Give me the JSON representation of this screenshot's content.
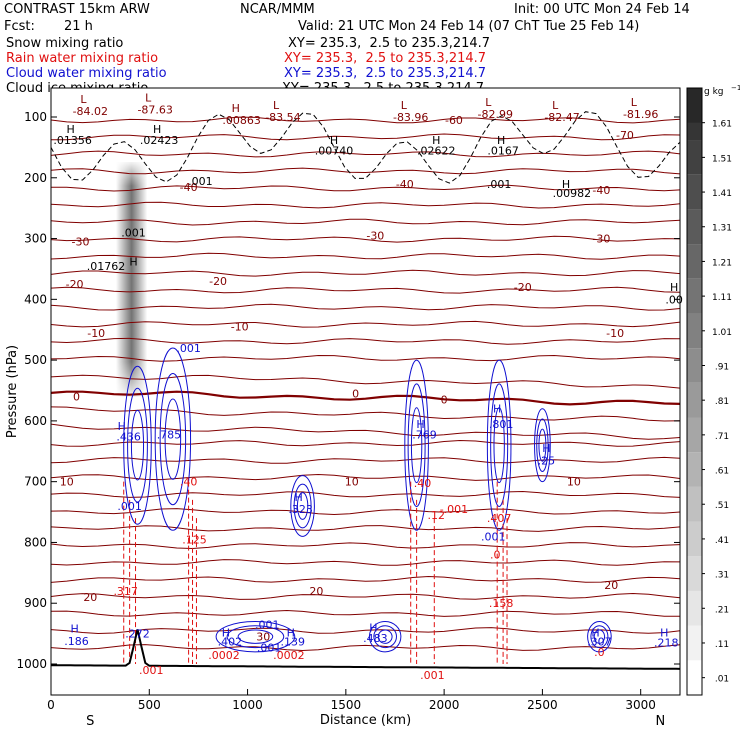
{
  "header": {
    "model": "CONTRAST 15km ARW",
    "org": "NCAR/MMM",
    "init": "Init: 00 UTC Mon 24 Feb 14",
    "fcst_label": "Fcst:",
    "fcst_value": "21 h",
    "valid": "Valid: 21 UTC Mon 24 Feb 14 (07 ChT Tue 25 Feb 14)"
  },
  "fields": [
    {
      "name": "Snow mixing ratio",
      "xy": "XY= 235.3,  2.5 to 235.3,214.7",
      "color": "#000000"
    },
    {
      "name": "Rain water mixing ratio",
      "xy": "XY= 235.3,  2.5 to 235.3,214.7",
      "color": "#e01010"
    },
    {
      "name": "Cloud water mixing ratio",
      "xy": "XY= 235.3,  2.5 to 235.3,214.7",
      "color": "#1010d0"
    },
    {
      "name": "Cloud ice mixing ratio",
      "xy": "XY= 235.3,  2.5 to 235.3,214.7",
      "color": "#000000"
    }
  ],
  "chart_data": {
    "type": "cross-section contour",
    "xlabel": "Distance (km)",
    "ylabel": "Pressure (hPa)",
    "xlim": [
      0,
      3200
    ],
    "ylim": [
      1050,
      50
    ],
    "x_ticks": [
      0,
      500,
      1000,
      1500,
      2000,
      2500,
      3000
    ],
    "y_ticks": [
      100,
      200,
      300,
      400,
      500,
      600,
      700,
      800,
      900,
      1000
    ],
    "x_end_labels": {
      "left": "S",
      "right": "N"
    },
    "colorbar": {
      "unit": "g kg",
      "unit_exp": "−1",
      "levels": [
        ".01",
        ".11",
        ".21",
        ".31",
        ".41",
        ".51",
        ".61",
        ".71",
        ".81",
        ".91",
        "1.01",
        "1.11",
        "1.21",
        "1.31",
        "1.41",
        "1.51",
        "1.61"
      ]
    },
    "temperature_contours": {
      "color": "#800000",
      "labels": [
        {
          "text": "-70",
          "x": 2920,
          "p": 130
        },
        {
          "text": "-60",
          "x": 2050,
          "p": 105
        },
        {
          "text": "-40",
          "x": 700,
          "p": 215
        },
        {
          "text": "-40",
          "x": 1800,
          "p": 210
        },
        {
          "text": "-40",
          "x": 2800,
          "p": 220
        },
        {
          "text": "-30",
          "x": 150,
          "p": 305
        },
        {
          "text": "-30",
          "x": 1650,
          "p": 295
        },
        {
          "text": "-30",
          "x": 2800,
          "p": 300
        },
        {
          "text": "-20",
          "x": 120,
          "p": 375
        },
        {
          "text": "-20",
          "x": 850,
          "p": 370
        },
        {
          "text": "-20",
          "x": 2400,
          "p": 380
        },
        {
          "text": "-10",
          "x": 230,
          "p": 455
        },
        {
          "text": "-10",
          "x": 960,
          "p": 445
        },
        {
          "text": "-10",
          "x": 2870,
          "p": 455
        },
        {
          "text": "0",
          "x": 130,
          "p": 560
        },
        {
          "text": "0",
          "x": 1550,
          "p": 555
        },
        {
          "text": "0",
          "x": 2000,
          "p": 565
        },
        {
          "text": "10",
          "x": 80,
          "p": 700
        },
        {
          "text": "10",
          "x": 1530,
          "p": 700
        },
        {
          "text": "10",
          "x": 2660,
          "p": 700
        },
        {
          "text": "20",
          "x": 200,
          "p": 890
        },
        {
          "text": "20",
          "x": 1350,
          "p": 880
        },
        {
          "text": "20",
          "x": 2850,
          "p": 870
        },
        {
          "text": "30",
          "x": 1080,
          "p": 955
        }
      ],
      "extrema": [
        {
          "type": "L",
          "value": "-84.02",
          "x": 200,
          "p": 90
        },
        {
          "type": "L",
          "value": "-87.63",
          "x": 530,
          "p": 88
        },
        {
          "type": "H",
          "value": ".00863",
          "x": 970,
          "p": 105
        },
        {
          "type": "L",
          "value": "-83.54",
          "x": 1180,
          "p": 100
        },
        {
          "type": "L",
          "value": "-83.96",
          "x": 1830,
          "p": 100
        },
        {
          "type": "L",
          "value": "-82.99",
          "x": 2260,
          "p": 95
        },
        {
          "type": "L",
          "value": "-82.47",
          "x": 2600,
          "p": 100
        },
        {
          "type": "L",
          "value": "-81.96",
          "x": 3000,
          "p": 95
        }
      ]
    },
    "ice_labels": [
      {
        "text": "H",
        "x": 100,
        "p": 120
      },
      {
        "text": ".01356",
        "x": 110,
        "p": 138
      },
      {
        "text": "H",
        "x": 540,
        "p": 120
      },
      {
        "text": ".02423",
        "x": 550,
        "p": 138
      },
      {
        "text": "H",
        "x": 1440,
        "p": 138
      },
      {
        "text": ".00740",
        "x": 1440,
        "p": 155
      },
      {
        "text": "H",
        "x": 1960,
        "p": 138
      },
      {
        "text": ".02622",
        "x": 1960,
        "p": 155
      },
      {
        "text": "H",
        "x": 2290,
        "p": 138
      },
      {
        "text": ".0167",
        "x": 2300,
        "p": 155
      },
      {
        "text": ".001",
        "x": 2280,
        "p": 210
      },
      {
        "text": "H",
        "x": 2620,
        "p": 210
      },
      {
        "text": ".00982",
        "x": 2650,
        "p": 225
      },
      {
        "text": ".001",
        "x": 760,
        "p": 205
      },
      {
        "text": ".001",
        "x": 420,
        "p": 290
      },
      {
        "text": "H",
        "x": 420,
        "p": 338
      },
      {
        "text": ".01762",
        "x": 280,
        "p": 345
      },
      {
        "text": "H",
        "x": 3170,
        "p": 380
      },
      {
        "text": ".00",
        "x": 3170,
        "p": 400
      }
    ],
    "cloud_water_labels": [
      {
        "text": ".001",
        "x": 700,
        "p": 480
      },
      {
        "text": "H",
        "x": 360,
        "p": 608
      },
      {
        "text": ".436",
        "x": 395,
        "p": 626
      },
      {
        "text": ".785",
        "x": 600,
        "p": 622
      },
      {
        "text": "H",
        "x": 1880,
        "p": 605
      },
      {
        "text": ".769",
        "x": 1900,
        "p": 622
      },
      {
        "text": "H",
        "x": 2270,
        "p": 580
      },
      {
        "text": ".801",
        "x": 2290,
        "p": 605
      },
      {
        "text": "H",
        "x": 2520,
        "p": 645
      },
      {
        "text": ".25",
        "x": 2520,
        "p": 665
      },
      {
        "text": ".001",
        "x": 400,
        "p": 740
      },
      {
        "text": "H",
        "x": 1260,
        "p": 725
      },
      {
        "text": ".323",
        "x": 1270,
        "p": 745
      },
      {
        "text": ".001",
        "x": 2250,
        "p": 790
      },
      {
        "text": "H",
        "x": 120,
        "p": 942
      },
      {
        "text": ".186",
        "x": 130,
        "p": 962
      },
      {
        "text": "H",
        "x": 890,
        "p": 948
      },
      {
        "text": ".402",
        "x": 910,
        "p": 963
      },
      {
        "text": ".001",
        "x": 1100,
        "p": 935
      },
      {
        "text": "H",
        "x": 1220,
        "p": 948
      },
      {
        "text": ".139",
        "x": 1230,
        "p": 963
      },
      {
        "text": ".001",
        "x": 1110,
        "p": 973
      },
      {
        "text": "H",
        "x": 1640,
        "p": 940
      },
      {
        "text": ".483",
        "x": 1650,
        "p": 957
      },
      {
        "text": ".272",
        "x": 440,
        "p": 950
      },
      {
        "text": "H",
        "x": 2770,
        "p": 948
      },
      {
        "text": ".307",
        "x": 2790,
        "p": 963
      },
      {
        "text": "H",
        "x": 3120,
        "p": 948
      },
      {
        "text": ".218",
        "x": 3130,
        "p": 965
      }
    ],
    "rain_labels": [
      {
        "text": ".40",
        "x": 700,
        "p": 700
      },
      {
        "text": ".40",
        "x": 1890,
        "p": 702
      },
      {
        "text": ".407",
        "x": 2280,
        "p": 760
      },
      {
        "text": "-.001",
        "x": 2050,
        "p": 745
      },
      {
        "text": ".125",
        "x": 730,
        "p": 795
      },
      {
        "text": ".12",
        "x": 1960,
        "p": 755
      },
      {
        "text": ".0",
        "x": 2260,
        "p": 820
      },
      {
        "text": ".317",
        "x": 380,
        "p": 880
      },
      {
        "text": ".158",
        "x": 2290,
        "p": 900
      },
      {
        "text": ".0002",
        "x": 880,
        "p": 985
      },
      {
        "text": ".0002",
        "x": 1210,
        "p": 985
      },
      {
        "text": ".001",
        "x": 510,
        "p": 1010
      },
      {
        "text": ".001",
        "x": 1940,
        "p": 1018
      },
      {
        "text": ".0",
        "x": 2790,
        "p": 980
      }
    ]
  }
}
